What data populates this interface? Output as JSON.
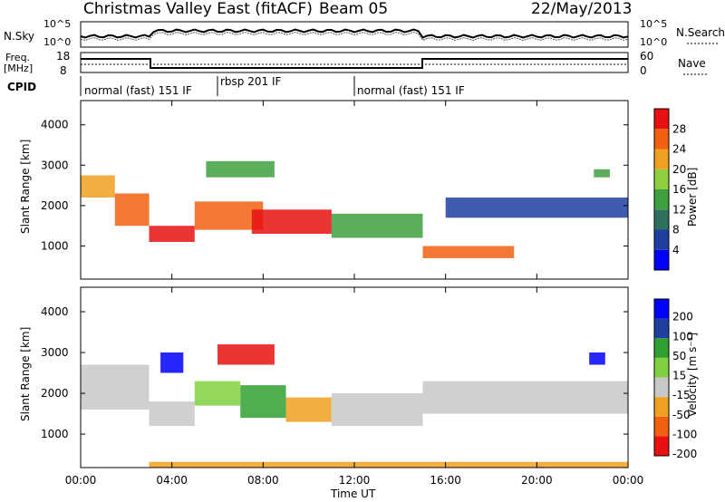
{
  "header": {
    "station": "Christmas Valley East (fitACF)",
    "beam": "Beam 05",
    "date": "22/May/2013"
  },
  "labels": {
    "nsky": "N.Sky",
    "nsearch": "N.Search",
    "freq": "Freq.",
    "freq_unit": "[MHz]",
    "nave": "Nave",
    "cpid": "CPID",
    "noise_left_top": "10^5",
    "noise_left_bottom": "10^0",
    "noise_right_top": "10^5",
    "noise_right_bottom": "10^0",
    "freq_tick_top": "18",
    "freq_tick_bottom": "8",
    "nave_tick_top": "60",
    "nave_tick_bottom": "0"
  },
  "cpid_segments": [
    {
      "label": "normal (fast) 151 IF",
      "start_h": 0,
      "end_h": 6
    },
    {
      "label": "rbsp 201 IF",
      "start_h": 6,
      "end_h": 12
    },
    {
      "label": "normal (fast) 151 IF",
      "start_h": 12,
      "end_h": 24
    }
  ],
  "colors": {
    "power": [
      "#0000ff",
      "#1f3fa0",
      "#2f6f5f",
      "#3fa040",
      "#8fd040",
      "#f0a020",
      "#f06010",
      "#e81010"
    ],
    "velocity": [
      "#0000ff",
      "#1f3fa0",
      "#30a030",
      "#80d040",
      "#c8c8c8",
      "#f0a020",
      "#f06010",
      "#e81010"
    ]
  },
  "chart_data": [
    {
      "type": "heatmap",
      "name": "power",
      "ylabel": "Slant Range [km]",
      "xlabel": "Time UT",
      "xlim": [
        "00:00",
        "24:00"
      ],
      "ylim": [
        180,
        4600
      ],
      "xticks": [
        "00:00",
        "04:00",
        "08:00",
        "12:00",
        "16:00",
        "20:00",
        "00:00"
      ],
      "yticks": [
        "1000",
        "2000",
        "3000",
        "4000"
      ],
      "colorbar_label": "Power [dB]",
      "colorbar_ticks": [
        "4",
        "8",
        "12",
        "16",
        "20",
        "24",
        "28"
      ],
      "bands": [
        {
          "start_h": 0.0,
          "end_h": 1.5,
          "range_km": [
            2200,
            2750
          ],
          "level": 5
        },
        {
          "start_h": 1.5,
          "end_h": 3.0,
          "range_km": [
            1500,
            2300
          ],
          "level": 6
        },
        {
          "start_h": 3.0,
          "end_h": 5.0,
          "range_km": [
            1100,
            1500
          ],
          "level": 7
        },
        {
          "start_h": 5.0,
          "end_h": 8.0,
          "range_km": [
            1400,
            2100
          ],
          "level": 6
        },
        {
          "start_h": 7.5,
          "end_h": 11.0,
          "range_km": [
            1300,
            1900
          ],
          "level": 7
        },
        {
          "start_h": 11.0,
          "end_h": 15.0,
          "range_km": [
            1200,
            1800
          ],
          "level": 3
        },
        {
          "start_h": 15.0,
          "end_h": 19.0,
          "range_km": [
            700,
            1000
          ],
          "level": 6
        },
        {
          "start_h": 16.0,
          "end_h": 24.0,
          "range_km": [
            1700,
            2200
          ],
          "level": 1
        },
        {
          "start_h": 5.5,
          "end_h": 8.5,
          "range_km": [
            2700,
            3100
          ],
          "level": 3
        },
        {
          "start_h": 22.5,
          "end_h": 23.2,
          "range_km": [
            2700,
            2900
          ],
          "level": 3
        }
      ]
    },
    {
      "type": "heatmap",
      "name": "velocity",
      "ylabel": "Slant Range [km]",
      "xlabel": "Time UT",
      "xlim": [
        "00:00",
        "24:00"
      ],
      "ylim": [
        180,
        4600
      ],
      "xticks": [
        "00:00",
        "04:00",
        "08:00",
        "12:00",
        "16:00",
        "20:00",
        "00:00"
      ],
      "yticks": [
        "1000",
        "2000",
        "3000",
        "4000"
      ],
      "colorbar_label": "Velocity [m s⁻¹]",
      "colorbar_ticks": [
        "200",
        "100",
        "50",
        "15",
        "-15",
        "-50",
        "-100",
        "-200"
      ],
      "bands": [
        {
          "start_h": 0.0,
          "end_h": 3.0,
          "range_km": [
            1600,
            2700
          ],
          "level": 4
        },
        {
          "start_h": 3.0,
          "end_h": 5.0,
          "range_km": [
            1200,
            1800
          ],
          "level": 4
        },
        {
          "start_h": 3.5,
          "end_h": 4.5,
          "range_km": [
            2500,
            3000
          ],
          "level": 0
        },
        {
          "start_h": 5.0,
          "end_h": 7.0,
          "range_km": [
            1700,
            2300
          ],
          "level": 3
        },
        {
          "start_h": 7.0,
          "end_h": 9.0,
          "range_km": [
            1400,
            2200
          ],
          "level": 2
        },
        {
          "start_h": 6.0,
          "end_h": 8.5,
          "range_km": [
            2700,
            3200
          ],
          "level": 7
        },
        {
          "start_h": 9.0,
          "end_h": 11.0,
          "range_km": [
            1300,
            1900
          ],
          "level": 5
        },
        {
          "start_h": 11.0,
          "end_h": 15.0,
          "range_km": [
            1200,
            2000
          ],
          "level": 4
        },
        {
          "start_h": 15.0,
          "end_h": 24.0,
          "range_km": [
            1500,
            2300
          ],
          "level": 4
        },
        {
          "start_h": 22.3,
          "end_h": 23.0,
          "range_km": [
            2700,
            3000
          ],
          "level": 0
        },
        {
          "start_h": 3.0,
          "end_h": 24.0,
          "range_km": [
            180,
            320
          ],
          "level": 5
        }
      ]
    }
  ]
}
